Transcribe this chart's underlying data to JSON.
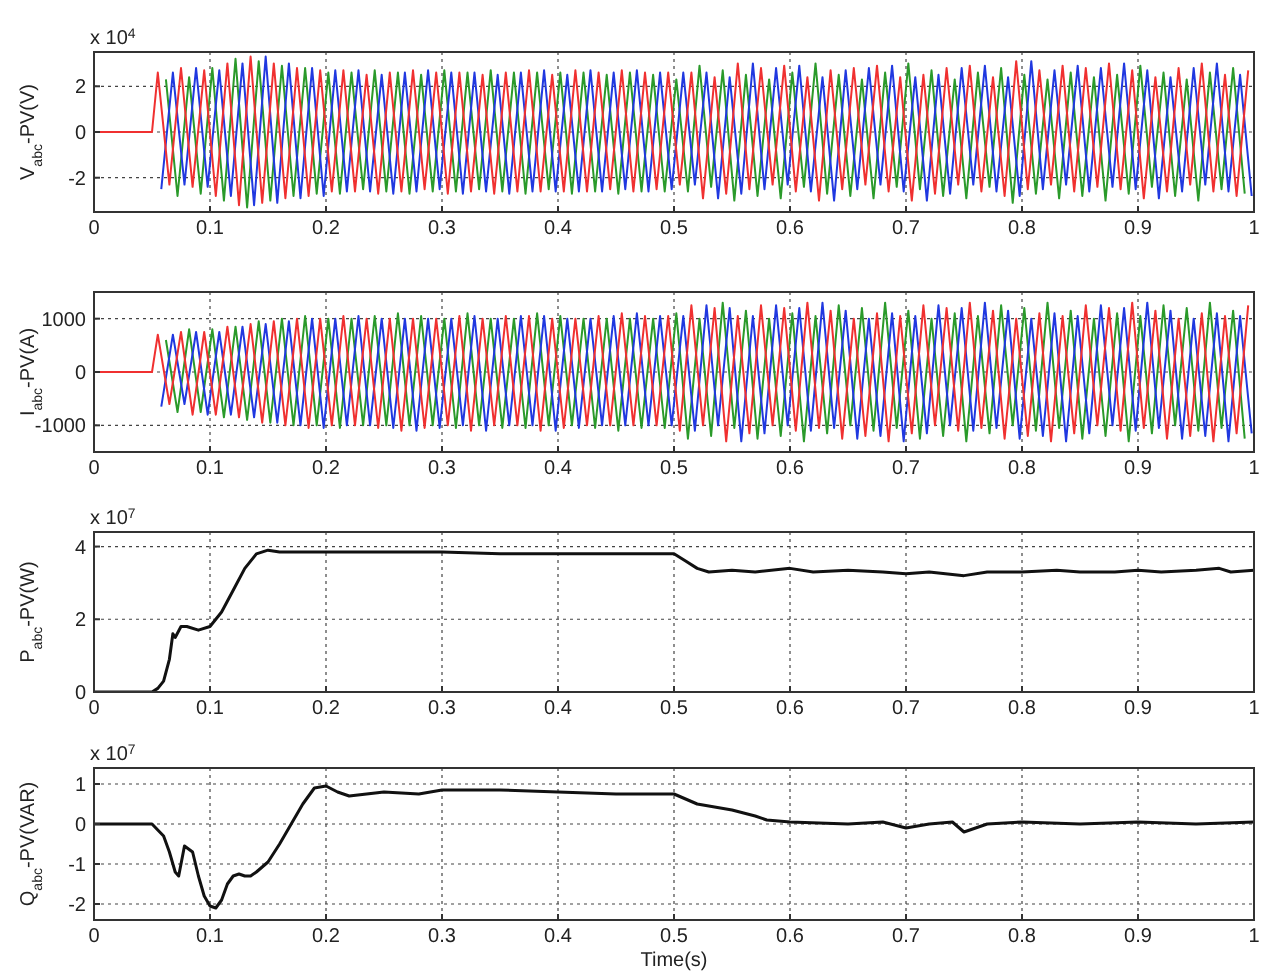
{
  "chart_data": [
    {
      "type": "line",
      "ylabel": "V$_{abc}$-PV(V)",
      "annotations": [
        "x 10$^{4}$"
      ],
      "xlim": [
        0,
        1
      ],
      "xticks": [
        0,
        0.1,
        0.2,
        0.3,
        0.4,
        0.5,
        0.6,
        0.7,
        0.8,
        0.9,
        1
      ],
      "ylim": [
        -3.5,
        3.5
      ],
      "yticks": [
        -2,
        0,
        2
      ],
      "grid": true,
      "series": [
        {
          "color": "#2a9a2a",
          "x": [
            0.062,
            0.072,
            0.082,
            0.092,
            0.102,
            0.112,
            0.122,
            0.132,
            0.142,
            0.152,
            0.162,
            0.172,
            0.182,
            0.192,
            0.202,
            0.212,
            0.222,
            0.232,
            0.242,
            0.252,
            0.262,
            0.272,
            0.282,
            0.292,
            0.302,
            0.312,
            0.322,
            0.332,
            0.342,
            0.352,
            0.362,
            0.372,
            0.382,
            0.392,
            0.402,
            0.412,
            0.422,
            0.432,
            0.442,
            0.452,
            0.462,
            0.472,
            0.482,
            0.492,
            0.502,
            0.512,
            0.522,
            0.532,
            0.542,
            0.552,
            0.562,
            0.572,
            0.582,
            0.592,
            0.602,
            0.612,
            0.622,
            0.632,
            0.642,
            0.652,
            0.662,
            0.672,
            0.682,
            0.692,
            0.702,
            0.712,
            0.722,
            0.732,
            0.742,
            0.752,
            0.762,
            0.772,
            0.782,
            0.792,
            0.802,
            0.812,
            0.822,
            0.832,
            0.842,
            0.852,
            0.862,
            0.872,
            0.882,
            0.892,
            0.902,
            0.912,
            0.922,
            0.932,
            0.942,
            0.952,
            0.962,
            0.972,
            0.982,
            0.992
          ],
          "values": [
            2.3,
            -2.8,
            2.4,
            -2.7,
            2.8,
            -3.0,
            3.2,
            -3.3,
            3.1,
            -3.0,
            2.9,
            -2.8,
            2.8,
            -2.7,
            2.6,
            -2.7,
            2.6,
            -2.5,
            2.7,
            -2.6,
            2.6,
            -2.7,
            2.5,
            -2.6,
            2.7,
            -2.6,
            2.6,
            -2.5,
            2.7,
            -2.6,
            2.6,
            -2.7,
            2.6,
            -2.5,
            2.6,
            -2.7,
            2.6,
            -2.6,
            2.5,
            -2.7,
            2.6,
            -2.6,
            2.5,
            -2.6,
            2.3,
            -2.6,
            2.9,
            -2.4,
            2.7,
            -3.0,
            2.5,
            -2.8,
            2.3,
            -2.9,
            2.6,
            -2.4,
            3.0,
            -2.7,
            2.5,
            -2.8,
            2.3,
            -2.9,
            2.6,
            -2.4,
            3.0,
            -2.5,
            2.7,
            -2.8,
            2.3,
            -2.9,
            2.6,
            -2.4,
            2.8,
            -3.1,
            2.5,
            -2.7,
            2.3,
            -2.9,
            2.6,
            -2.8,
            2.4,
            -3.0,
            2.5,
            -2.7,
            2.9,
            -2.4,
            2.6,
            -2.8,
            2.3,
            -3.0,
            2.6,
            -2.5,
            2.8,
            -2.7
          ]
        },
        {
          "color": "#2038e0",
          "x": [
            0.058,
            0.068,
            0.078,
            0.088,
            0.098,
            0.108,
            0.118,
            0.128,
            0.138,
            0.148,
            0.158,
            0.168,
            0.178,
            0.188,
            0.198,
            0.208,
            0.218,
            0.228,
            0.238,
            0.248,
            0.258,
            0.268,
            0.278,
            0.288,
            0.298,
            0.308,
            0.318,
            0.328,
            0.338,
            0.348,
            0.358,
            0.368,
            0.378,
            0.388,
            0.398,
            0.408,
            0.418,
            0.428,
            0.438,
            0.448,
            0.458,
            0.468,
            0.478,
            0.488,
            0.498,
            0.508,
            0.518,
            0.528,
            0.538,
            0.548,
            0.558,
            0.568,
            0.578,
            0.588,
            0.598,
            0.608,
            0.618,
            0.628,
            0.638,
            0.648,
            0.658,
            0.668,
            0.678,
            0.688,
            0.698,
            0.708,
            0.718,
            0.728,
            0.738,
            0.748,
            0.758,
            0.768,
            0.778,
            0.788,
            0.798,
            0.808,
            0.818,
            0.828,
            0.838,
            0.848,
            0.858,
            0.868,
            0.878,
            0.888,
            0.898,
            0.908,
            0.918,
            0.928,
            0.938,
            0.948,
            0.958,
            0.968,
            0.978,
            0.988,
            0.998
          ],
          "values": [
            -2.5,
            2.6,
            -2.3,
            2.8,
            -2.4,
            2.7,
            -2.8,
            3.0,
            -3.2,
            3.3,
            -3.1,
            3.0,
            -2.9,
            2.8,
            -2.8,
            2.7,
            -2.6,
            2.7,
            -2.6,
            2.5,
            -2.7,
            2.6,
            -2.6,
            2.7,
            -2.5,
            2.6,
            -2.7,
            2.6,
            -2.6,
            2.5,
            -2.7,
            2.6,
            -2.6,
            2.7,
            -2.6,
            2.5,
            -2.6,
            2.7,
            -2.6,
            2.6,
            -2.5,
            2.7,
            -2.6,
            2.6,
            -2.5,
            2.6,
            -2.3,
            2.6,
            -2.9,
            2.4,
            -2.7,
            3.0,
            -2.5,
            2.8,
            -2.3,
            2.9,
            -2.6,
            2.4,
            -3.0,
            2.7,
            -2.5,
            2.8,
            -2.3,
            2.9,
            -2.6,
            2.4,
            -3.0,
            2.5,
            -2.7,
            2.8,
            -2.3,
            2.9,
            -2.6,
            2.4,
            -2.8,
            3.1,
            -2.5,
            2.7,
            -2.3,
            2.9,
            -2.6,
            2.8,
            -2.4,
            3.0,
            -2.5,
            2.7,
            -2.9,
            2.4,
            -2.6,
            2.8,
            -2.3,
            3.0,
            -2.6,
            2.5,
            -2.8
          ]
        },
        {
          "color": "#f03030",
          "x": [
            0,
            0.05,
            0.055,
            0.065,
            0.075,
            0.085,
            0.095,
            0.105,
            0.115,
            0.125,
            0.135,
            0.145,
            0.155,
            0.165,
            0.175,
            0.185,
            0.195,
            0.205,
            0.215,
            0.225,
            0.235,
            0.245,
            0.255,
            0.265,
            0.275,
            0.285,
            0.295,
            0.305,
            0.315,
            0.325,
            0.335,
            0.345,
            0.355,
            0.365,
            0.375,
            0.385,
            0.395,
            0.405,
            0.415,
            0.425,
            0.435,
            0.445,
            0.455,
            0.465,
            0.475,
            0.485,
            0.495,
            0.505,
            0.515,
            0.525,
            0.535,
            0.545,
            0.555,
            0.565,
            0.575,
            0.585,
            0.595,
            0.605,
            0.615,
            0.625,
            0.635,
            0.645,
            0.655,
            0.665,
            0.675,
            0.685,
            0.695,
            0.705,
            0.715,
            0.725,
            0.735,
            0.745,
            0.755,
            0.765,
            0.775,
            0.785,
            0.795,
            0.805,
            0.815,
            0.825,
            0.835,
            0.845,
            0.855,
            0.865,
            0.875,
            0.885,
            0.895,
            0.905,
            0.915,
            0.925,
            0.935,
            0.945,
            0.955,
            0.965,
            0.975,
            0.985,
            0.995
          ],
          "values": [
            0,
            0,
            2.6,
            -2.3,
            2.8,
            -2.4,
            2.7,
            -2.8,
            3.0,
            -3.2,
            3.3,
            -3.1,
            3.0,
            -2.9,
            2.8,
            -2.8,
            2.7,
            -2.6,
            2.7,
            -2.6,
            2.5,
            -2.7,
            2.6,
            -2.6,
            2.7,
            -2.5,
            2.6,
            -2.7,
            2.6,
            -2.6,
            2.5,
            -2.7,
            2.6,
            -2.6,
            2.7,
            -2.6,
            2.5,
            -2.6,
            2.7,
            -2.6,
            2.6,
            -2.5,
            2.7,
            -2.6,
            2.6,
            -2.5,
            2.6,
            -2.3,
            2.6,
            -2.9,
            2.4,
            -2.7,
            3.0,
            -2.5,
            2.8,
            -2.3,
            2.9,
            -2.6,
            2.4,
            -3.0,
            2.7,
            -2.5,
            2.8,
            -2.3,
            2.9,
            -2.6,
            2.4,
            -3.0,
            2.5,
            -2.7,
            2.8,
            -2.3,
            2.9,
            -2.6,
            2.4,
            -2.8,
            3.1,
            -2.5,
            2.7,
            -2.3,
            2.9,
            -2.6,
            2.8,
            -2.4,
            3.0,
            -2.5,
            2.7,
            -2.9,
            2.4,
            -2.6,
            2.8,
            -2.3,
            3.0,
            -2.6,
            2.5,
            -2.8,
            2.7
          ]
        }
      ]
    },
    {
      "type": "line",
      "ylabel": "I$_{abc}$-PV(A)",
      "xlim": [
        0,
        1
      ],
      "xticks": [
        0,
        0.1,
        0.2,
        0.3,
        0.4,
        0.5,
        0.6,
        0.7,
        0.8,
        0.9,
        1
      ],
      "ylim": [
        -1500,
        1500
      ],
      "yticks": [
        -1000,
        0,
        1000
      ],
      "grid": true,
      "series": [
        {
          "color": "#2a9a2a",
          "x": [
            0.062,
            0.072,
            0.082,
            0.092,
            0.102,
            0.112,
            0.122,
            0.132,
            0.142,
            0.152,
            0.162,
            0.172,
            0.182,
            0.192,
            0.202,
            0.212,
            0.222,
            0.232,
            0.242,
            0.252,
            0.262,
            0.272,
            0.282,
            0.292,
            0.302,
            0.312,
            0.322,
            0.332,
            0.342,
            0.352,
            0.362,
            0.372,
            0.382,
            0.392,
            0.402,
            0.412,
            0.422,
            0.432,
            0.442,
            0.452,
            0.462,
            0.472,
            0.482,
            0.492,
            0.502,
            0.512,
            0.522,
            0.532,
            0.542,
            0.552,
            0.562,
            0.572,
            0.582,
            0.592,
            0.602,
            0.612,
            0.622,
            0.632,
            0.642,
            0.652,
            0.662,
            0.672,
            0.682,
            0.692,
            0.702,
            0.712,
            0.722,
            0.732,
            0.742,
            0.752,
            0.762,
            0.772,
            0.782,
            0.792,
            0.802,
            0.812,
            0.822,
            0.832,
            0.842,
            0.852,
            0.862,
            0.872,
            0.882,
            0.892,
            0.902,
            0.912,
            0.922,
            0.932,
            0.942,
            0.952,
            0.962,
            0.972,
            0.982,
            0.992
          ],
          "values": [
            600,
            -750,
            800,
            -750,
            800,
            -850,
            850,
            -900,
            950,
            -950,
            1000,
            -1000,
            1050,
            -1000,
            1000,
            -1050,
            1000,
            -1000,
            1050,
            -1000,
            1100,
            -1000,
            1050,
            -1000,
            1000,
            -1050,
            1100,
            -1000,
            1000,
            -1050,
            1000,
            -1050,
            1100,
            -1000,
            1050,
            -1000,
            1000,
            -1050,
            1000,
            -1100,
            1000,
            -1050,
            1000,
            -1050,
            1100,
            -1250,
            1000,
            -1200,
            1300,
            -1050,
            1150,
            -1250,
            1000,
            -1200,
            1100,
            -1300,
            1050,
            -1150,
            1250,
            -1000,
            1200,
            -1100,
            1300,
            -1050,
            1150,
            -1250,
            1000,
            -1200,
            1100,
            -1300,
            1050,
            -1150,
            1250,
            -1000,
            1200,
            -1100,
            1300,
            -1050,
            1150,
            -1250,
            1000,
            -1200,
            1100,
            -1300,
            1050,
            -1150,
            1250,
            -1000,
            1200,
            -1100,
            1300,
            -1050,
            1150,
            -1250
          ]
        },
        {
          "color": "#2038e0",
          "x": [
            0.058,
            0.068,
            0.078,
            0.088,
            0.098,
            0.108,
            0.118,
            0.128,
            0.138,
            0.148,
            0.158,
            0.168,
            0.178,
            0.188,
            0.198,
            0.208,
            0.218,
            0.228,
            0.238,
            0.248,
            0.258,
            0.268,
            0.278,
            0.288,
            0.298,
            0.308,
            0.318,
            0.328,
            0.338,
            0.348,
            0.358,
            0.368,
            0.378,
            0.388,
            0.398,
            0.408,
            0.418,
            0.428,
            0.438,
            0.448,
            0.458,
            0.468,
            0.478,
            0.488,
            0.498,
            0.508,
            0.518,
            0.528,
            0.538,
            0.548,
            0.558,
            0.568,
            0.578,
            0.588,
            0.598,
            0.608,
            0.618,
            0.628,
            0.638,
            0.648,
            0.658,
            0.668,
            0.678,
            0.688,
            0.698,
            0.708,
            0.718,
            0.728,
            0.738,
            0.748,
            0.758,
            0.768,
            0.778,
            0.788,
            0.798,
            0.808,
            0.818,
            0.828,
            0.838,
            0.848,
            0.858,
            0.868,
            0.878,
            0.888,
            0.898,
            0.908,
            0.918,
            0.928,
            0.938,
            0.948,
            0.958,
            0.968,
            0.978,
            0.988,
            0.998
          ],
          "values": [
            -650,
            700,
            -600,
            750,
            -800,
            750,
            -800,
            850,
            -850,
            900,
            -950,
            950,
            -1000,
            1000,
            -1050,
            1000,
            -1000,
            1050,
            -1000,
            1000,
            -1050,
            1000,
            -1100,
            1000,
            -1050,
            1000,
            -1000,
            1050,
            -1100,
            1000,
            -1000,
            1050,
            -1000,
            1050,
            -1100,
            1000,
            -1050,
            1000,
            -1000,
            1050,
            -1000,
            1100,
            -1000,
            1050,
            -1000,
            1050,
            -1100,
            1250,
            -1000,
            1200,
            -1300,
            1050,
            -1150,
            1250,
            -1000,
            1200,
            -1100,
            1300,
            -1050,
            1150,
            -1250,
            1000,
            -1200,
            1100,
            -1300,
            1050,
            -1150,
            1250,
            -1000,
            1200,
            -1100,
            1300,
            -1050,
            1150,
            -1250,
            1000,
            -1200,
            1100,
            -1300,
            1050,
            -1150,
            1250,
            -1000,
            1200,
            -1100,
            1300,
            -1050,
            1150,
            -1250,
            1000,
            -1200,
            1100,
            -1300,
            1050,
            -1150
          ]
        },
        {
          "color": "#f03030",
          "x": [
            0,
            0.05,
            0.055,
            0.065,
            0.075,
            0.085,
            0.095,
            0.105,
            0.115,
            0.125,
            0.135,
            0.145,
            0.155,
            0.165,
            0.175,
            0.185,
            0.195,
            0.205,
            0.215,
            0.225,
            0.235,
            0.245,
            0.255,
            0.265,
            0.275,
            0.285,
            0.295,
            0.305,
            0.315,
            0.325,
            0.335,
            0.345,
            0.355,
            0.365,
            0.375,
            0.385,
            0.395,
            0.405,
            0.415,
            0.425,
            0.435,
            0.445,
            0.455,
            0.465,
            0.475,
            0.485,
            0.495,
            0.505,
            0.515,
            0.525,
            0.535,
            0.545,
            0.555,
            0.565,
            0.575,
            0.585,
            0.595,
            0.605,
            0.615,
            0.625,
            0.635,
            0.645,
            0.655,
            0.665,
            0.675,
            0.685,
            0.695,
            0.705,
            0.715,
            0.725,
            0.735,
            0.745,
            0.755,
            0.765,
            0.775,
            0.785,
            0.795,
            0.805,
            0.815,
            0.825,
            0.835,
            0.845,
            0.855,
            0.865,
            0.875,
            0.885,
            0.895,
            0.905,
            0.915,
            0.925,
            0.935,
            0.945,
            0.955,
            0.965,
            0.975,
            0.985,
            0.995
          ],
          "values": [
            0,
            0,
            700,
            -600,
            750,
            -800,
            750,
            -800,
            850,
            -850,
            900,
            -950,
            950,
            -1000,
            1000,
            -1050,
            1000,
            -1000,
            1050,
            -1000,
            1000,
            -1050,
            1000,
            -1100,
            1000,
            -1050,
            1000,
            -1000,
            1050,
            -1100,
            1000,
            -1000,
            1050,
            -1000,
            1050,
            -1100,
            1000,
            -1050,
            1000,
            -1000,
            1050,
            -1000,
            1100,
            -1000,
            1050,
            -1000,
            1050,
            -1100,
            1250,
            -1000,
            1200,
            -1300,
            1050,
            -1150,
            1250,
            -1000,
            1200,
            -1100,
            1300,
            -1050,
            1150,
            -1250,
            1000,
            -1200,
            1100,
            -1300,
            1050,
            -1150,
            1250,
            -1000,
            1200,
            -1100,
            1300,
            -1050,
            1150,
            -1250,
            1000,
            -1200,
            1100,
            -1300,
            1050,
            -1150,
            1250,
            -1000,
            1200,
            -1100,
            1300,
            -1050,
            1150,
            -1250,
            1000,
            -1200,
            1100,
            -1300,
            1050,
            -1150,
            1250
          ]
        }
      ]
    },
    {
      "type": "line",
      "ylabel": "P$_{abc}$-PV(W)",
      "annotations": [
        "x 10$^{7}$"
      ],
      "xlim": [
        0,
        1
      ],
      "xticks": [
        0,
        0.1,
        0.2,
        0.3,
        0.4,
        0.5,
        0.6,
        0.7,
        0.8,
        0.9,
        1
      ],
      "ylim": [
        0,
        4.4
      ],
      "yticks": [
        0,
        2,
        4
      ],
      "grid": true,
      "series": [
        {
          "color": "#111111",
          "x": [
            0,
            0.05,
            0.055,
            0.06,
            0.065,
            0.068,
            0.07,
            0.075,
            0.08,
            0.09,
            0.1,
            0.11,
            0.12,
            0.13,
            0.14,
            0.15,
            0.16,
            0.2,
            0.25,
            0.3,
            0.35,
            0.4,
            0.45,
            0.5,
            0.51,
            0.52,
            0.53,
            0.55,
            0.57,
            0.6,
            0.62,
            0.65,
            0.68,
            0.7,
            0.72,
            0.75,
            0.77,
            0.8,
            0.83,
            0.85,
            0.88,
            0.9,
            0.92,
            0.95,
            0.97,
            0.98,
            1
          ],
          "values": [
            0,
            0,
            0.1,
            0.3,
            0.9,
            1.6,
            1.5,
            1.8,
            1.8,
            1.7,
            1.8,
            2.2,
            2.8,
            3.4,
            3.8,
            3.9,
            3.85,
            3.85,
            3.85,
            3.85,
            3.8,
            3.8,
            3.8,
            3.8,
            3.6,
            3.4,
            3.3,
            3.35,
            3.3,
            3.4,
            3.3,
            3.35,
            3.3,
            3.25,
            3.3,
            3.2,
            3.3,
            3.3,
            3.35,
            3.3,
            3.3,
            3.35,
            3.3,
            3.35,
            3.4,
            3.3,
            3.35
          ]
        }
      ]
    },
    {
      "type": "line",
      "ylabel": "Q$_{abc}$-PV(VAR)",
      "xlabel": "Time(s)",
      "annotations": [
        "x 10$^{7}$"
      ],
      "xlim": [
        0,
        1
      ],
      "xticks": [
        0,
        0.1,
        0.2,
        0.3,
        0.4,
        0.5,
        0.6,
        0.7,
        0.8,
        0.9,
        1
      ],
      "ylim": [
        -2.4,
        1.4
      ],
      "yticks": [
        -2,
        -1,
        0,
        1
      ],
      "grid": true,
      "series": [
        {
          "color": "#111111",
          "x": [
            0,
            0.05,
            0.06,
            0.065,
            0.07,
            0.073,
            0.078,
            0.085,
            0.09,
            0.095,
            0.1,
            0.105,
            0.11,
            0.115,
            0.12,
            0.125,
            0.13,
            0.135,
            0.14,
            0.15,
            0.16,
            0.17,
            0.18,
            0.19,
            0.2,
            0.21,
            0.22,
            0.25,
            0.28,
            0.3,
            0.35,
            0.4,
            0.45,
            0.5,
            0.52,
            0.55,
            0.57,
            0.58,
            0.6,
            0.65,
            0.68,
            0.7,
            0.72,
            0.74,
            0.75,
            0.77,
            0.8,
            0.85,
            0.9,
            0.95,
            1
          ],
          "values": [
            0,
            0,
            -0.3,
            -0.7,
            -1.2,
            -1.3,
            -0.55,
            -0.7,
            -1.3,
            -1.8,
            -2.05,
            -2.1,
            -1.9,
            -1.5,
            -1.3,
            -1.25,
            -1.3,
            -1.3,
            -1.2,
            -0.95,
            -0.5,
            0,
            0.5,
            0.9,
            0.95,
            0.8,
            0.7,
            0.8,
            0.75,
            0.85,
            0.85,
            0.8,
            0.75,
            0.75,
            0.5,
            0.35,
            0.2,
            0.1,
            0.05,
            0,
            0.05,
            -0.1,
            0,
            0.05,
            -0.2,
            0,
            0.05,
            0,
            0.05,
            0,
            0.05
          ]
        }
      ]
    }
  ]
}
